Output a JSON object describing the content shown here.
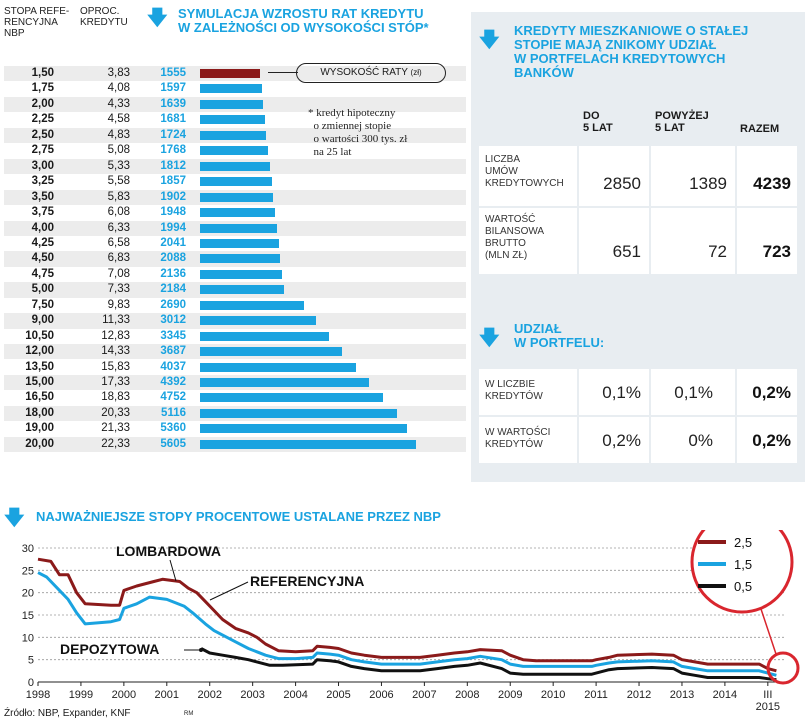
{
  "left": {
    "col1_header": "STOPA REFE-\nRENCYJNA\nNBP",
    "col2_header": "OPROC.\nKREDYTU",
    "title": "SYMULACJA WZROSTU RAT KREDYTU\nW ZALEŻNOŚCI OD WYSOKOŚCI STÓP*",
    "legend_label": "WYSOKOŚĆ RATY",
    "legend_unit": "(zł)",
    "footnote": "* kredyt hipoteczny\n  o zmiennej stopie\n  o wartości 300 tys. zł\n  na 25 lat"
  },
  "right": {
    "title": "KREDYTY MIESZKANIOWE O STAŁEJ\nSTOPIE MAJĄ ZNIKOMY UDZIAŁ\nW PORTFELACH KREDYTOWYCH\nBANKÓW",
    "col_headers": [
      "DO\n5 LAT",
      "POWYŻEJ\n5 LAT",
      "RAZEM"
    ],
    "rows": [
      {
        "label": "LICZBA\nUMÓW\nKREDYTOWYCH",
        "v1": "2850",
        "v2": "1389",
        "v3": "4239"
      },
      {
        "label": "WARTOŚĆ\nBILANSOWA\nBRUTTO\n(mln zł)",
        "v1": "651",
        "v2": "72",
        "v3": "723"
      }
    ],
    "subtitle": "UDZIAŁ\nW PORTFELU:",
    "rows2": [
      {
        "label": "W LICZBIE\nKREDYTÓW",
        "v1": "0,1%",
        "v2": "0,1%",
        "v3": "0,2%"
      },
      {
        "label": "W WARTOŚCI\nKREDYTÓW",
        "v1": "0,2%",
        "v2": "0%",
        "v3": "0,2%"
      }
    ]
  },
  "bottom": {
    "title": "NAJWAŻNIEJSZE STOPY PROCENTOWE USTALANE PRZEZ NBP",
    "source": "Źródło: NBP, Expander, KNF",
    "initials": "RM",
    "label_lombard": "LOMBARDOWA",
    "label_ref": "REFERENCYJNA",
    "label_dep": "DEPOZYTOWA",
    "zoom_values": [
      "2,5",
      "1,5",
      "0,5"
    ],
    "colors": {
      "lombard": "#8b1a1a",
      "ref": "#1aa3e0",
      "dep": "#111111"
    }
  },
  "chart_data": [
    {
      "type": "bar",
      "rows": [
        {
          "ref": "1,50",
          "rate": "3,83",
          "payment": 1555
        },
        {
          "ref": "1,75",
          "rate": "4,08",
          "payment": 1597
        },
        {
          "ref": "2,00",
          "rate": "4,33",
          "payment": 1639
        },
        {
          "ref": "2,25",
          "rate": "4,58",
          "payment": 1681
        },
        {
          "ref": "2,50",
          "rate": "4,83",
          "payment": 1724
        },
        {
          "ref": "2,75",
          "rate": "5,08",
          "payment": 1768
        },
        {
          "ref": "3,00",
          "rate": "5,33",
          "payment": 1812
        },
        {
          "ref": "3,25",
          "rate": "5,58",
          "payment": 1857
        },
        {
          "ref": "3,50",
          "rate": "5,83",
          "payment": 1902
        },
        {
          "ref": "3,75",
          "rate": "6,08",
          "payment": 1948
        },
        {
          "ref": "4,00",
          "rate": "6,33",
          "payment": 1994
        },
        {
          "ref": "4,25",
          "rate": "6,58",
          "payment": 2041
        },
        {
          "ref": "4,50",
          "rate": "6,83",
          "payment": 2088
        },
        {
          "ref": "4,75",
          "rate": "7,08",
          "payment": 2136
        },
        {
          "ref": "5,00",
          "rate": "7,33",
          "payment": 2184
        },
        {
          "ref": "7,50",
          "rate": "9,83",
          "payment": 2690
        },
        {
          "ref": "9,00",
          "rate": "11,33",
          "payment": 3012
        },
        {
          "ref": "10,50",
          "rate": "12,83",
          "payment": 3345
        },
        {
          "ref": "12,00",
          "rate": "14,33",
          "payment": 3687
        },
        {
          "ref": "13,50",
          "rate": "15,83",
          "payment": 4037
        },
        {
          "ref": "15,00",
          "rate": "17,33",
          "payment": 4392
        },
        {
          "ref": "16,50",
          "rate": "18,83",
          "payment": 4752
        },
        {
          "ref": "18,00",
          "rate": "20,33",
          "payment": 5116
        },
        {
          "ref": "19,00",
          "rate": "21,33",
          "payment": 5360
        },
        {
          "ref": "20,00",
          "rate": "22,33",
          "payment": 5605
        }
      ]
    },
    {
      "type": "line",
      "ylim": [
        0,
        30
      ],
      "yticks": [
        0,
        5,
        10,
        15,
        20,
        25,
        30
      ],
      "xlim": [
        1998,
        2015.4
      ],
      "xtick_labels": [
        "1998",
        "1999",
        "2000",
        "2001",
        "2002",
        "2003",
        "2004",
        "2005",
        "2006",
        "2007",
        "2008",
        "2009",
        "2010",
        "2011",
        "2012",
        "2013",
        "2014",
        "III\n2015"
      ],
      "series": [
        {
          "name": "LOMBARDOWA",
          "points": [
            [
              1998,
              27.5
            ],
            [
              1998.3,
              27
            ],
            [
              1998.5,
              24
            ],
            [
              1998.7,
              24
            ],
            [
              1998.9,
              20
            ],
            [
              1999.1,
              17.5
            ],
            [
              1999.7,
              17.2
            ],
            [
              1999.9,
              17.2
            ],
            [
              2000.0,
              20.5
            ],
            [
              2000.3,
              21.5
            ],
            [
              2000.7,
              22.5
            ],
            [
              2000.9,
              23
            ],
            [
              2001.3,
              22.5
            ],
            [
              2001.5,
              21
            ],
            [
              2001.7,
              20
            ],
            [
              2001.9,
              18
            ],
            [
              2002.1,
              16
            ],
            [
              2002.3,
              14
            ],
            [
              2002.6,
              12
            ],
            [
              2002.9,
              11
            ],
            [
              2003.1,
              10
            ],
            [
              2003.3,
              8.5
            ],
            [
              2003.6,
              7
            ],
            [
              2004.0,
              6.75
            ],
            [
              2004.4,
              7.0
            ],
            [
              2004.5,
              8.0
            ],
            [
              2004.8,
              7.75
            ],
            [
              2005.0,
              7.5
            ],
            [
              2005.3,
              6.5
            ],
            [
              2005.6,
              6.0
            ],
            [
              2006.0,
              5.5
            ],
            [
              2006.9,
              5.5
            ],
            [
              2007.3,
              6.0
            ],
            [
              2007.7,
              6.5
            ],
            [
              2008.0,
              6.75
            ],
            [
              2008.3,
              7.25
            ],
            [
              2008.8,
              7.0
            ],
            [
              2009.0,
              6.0
            ],
            [
              2009.3,
              5.0
            ],
            [
              2009.6,
              4.75
            ],
            [
              2010.9,
              4.75
            ],
            [
              2011.0,
              5.0
            ],
            [
              2011.3,
              5.5
            ],
            [
              2011.5,
              6.0
            ],
            [
              2012.3,
              6.25
            ],
            [
              2012.8,
              6.0
            ],
            [
              2013.0,
              5.0
            ],
            [
              2013.3,
              4.5
            ],
            [
              2013.6,
              4.0
            ],
            [
              2014.8,
              4.0
            ],
            [
              2015.0,
              3.0
            ],
            [
              2015.2,
              2.5
            ]
          ]
        },
        {
          "name": "REFERENCYJNA",
          "points": [
            [
              1998,
              24.5
            ],
            [
              1998.2,
              23.5
            ],
            [
              1998.5,
              20.5
            ],
            [
              1998.7,
              18.5
            ],
            [
              1998.9,
              15.5
            ],
            [
              1999.1,
              13.0
            ],
            [
              1999.7,
              13.5
            ],
            [
              1999.9,
              14.0
            ],
            [
              2000.0,
              16.5
            ],
            [
              2000.3,
              17.5
            ],
            [
              2000.6,
              19.0
            ],
            [
              2001.0,
              18.5
            ],
            [
              2001.4,
              17.0
            ],
            [
              2001.6,
              15.5
            ],
            [
              2001.9,
              13.0
            ],
            [
              2002.1,
              11.5
            ],
            [
              2002.3,
              10.5
            ],
            [
              2002.6,
              9.0
            ],
            [
              2002.9,
              7.5
            ],
            [
              2003.1,
              6.75
            ],
            [
              2003.3,
              6.0
            ],
            [
              2003.6,
              5.25
            ],
            [
              2004.0,
              5.25
            ],
            [
              2004.4,
              5.5
            ],
            [
              2004.5,
              6.5
            ],
            [
              2004.8,
              6.25
            ],
            [
              2005.0,
              6.0
            ],
            [
              2005.3,
              5.0
            ],
            [
              2005.6,
              4.5
            ],
            [
              2006.0,
              4.0
            ],
            [
              2006.9,
              4.0
            ],
            [
              2007.3,
              4.5
            ],
            [
              2007.7,
              5.0
            ],
            [
              2008.0,
              5.25
            ],
            [
              2008.3,
              5.75
            ],
            [
              2008.8,
              5.0
            ],
            [
              2009.0,
              4.0
            ],
            [
              2009.3,
              3.5
            ],
            [
              2009.6,
              3.5
            ],
            [
              2010.9,
              3.5
            ],
            [
              2011.0,
              3.75
            ],
            [
              2011.3,
              4.25
            ],
            [
              2011.5,
              4.5
            ],
            [
              2012.3,
              4.75
            ],
            [
              2012.8,
              4.5
            ],
            [
              2013.0,
              3.5
            ],
            [
              2013.3,
              3.0
            ],
            [
              2013.6,
              2.5
            ],
            [
              2014.8,
              2.5
            ],
            [
              2015.0,
              2.0
            ],
            [
              2015.2,
              1.5
            ]
          ]
        },
        {
          "name": "DEPOZYTOWA",
          "points": [
            [
              2001.8,
              7.5
            ],
            [
              2002.0,
              6.5
            ],
            [
              2002.3,
              6.0
            ],
            [
              2002.6,
              5.5
            ],
            [
              2002.9,
              5.0
            ],
            [
              2003.1,
              4.5
            ],
            [
              2003.4,
              3.75
            ],
            [
              2003.7,
              3.75
            ],
            [
              2004.4,
              4.0
            ],
            [
              2004.5,
              5.0
            ],
            [
              2004.8,
              4.75
            ],
            [
              2005.0,
              4.5
            ],
            [
              2005.3,
              3.5
            ],
            [
              2005.6,
              3.0
            ],
            [
              2006.0,
              2.5
            ],
            [
              2006.9,
              2.5
            ],
            [
              2007.3,
              3.0
            ],
            [
              2007.7,
              3.5
            ],
            [
              2008.0,
              3.75
            ],
            [
              2008.3,
              4.25
            ],
            [
              2008.8,
              3.0
            ],
            [
              2009.0,
              2.0
            ],
            [
              2009.3,
              1.75
            ],
            [
              2009.6,
              1.75
            ],
            [
              2010.9,
              1.75
            ],
            [
              2011.0,
              2.0
            ],
            [
              2011.3,
              2.75
            ],
            [
              2011.5,
              3.0
            ],
            [
              2012.3,
              3.25
            ],
            [
              2012.8,
              3.0
            ],
            [
              2013.0,
              2.0
            ],
            [
              2013.3,
              1.5
            ],
            [
              2013.6,
              1.0
            ],
            [
              2014.8,
              1.0
            ],
            [
              2015.0,
              0.75
            ],
            [
              2015.2,
              0.5
            ]
          ]
        }
      ]
    }
  ]
}
